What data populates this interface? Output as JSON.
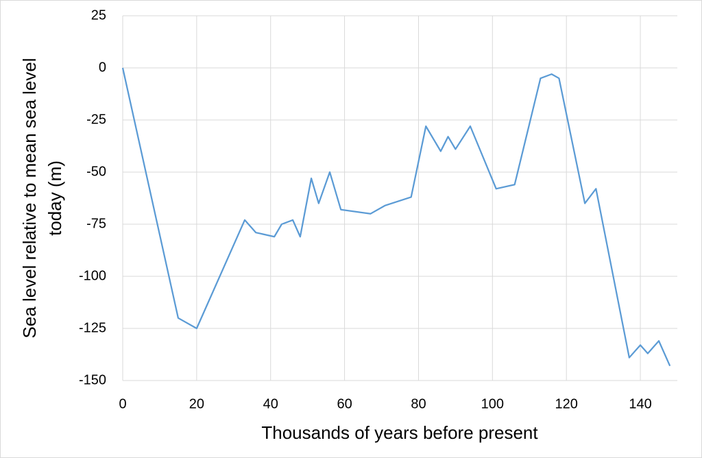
{
  "chart_data": {
    "type": "line",
    "x_label": "Thousands of years before present",
    "y_label": [
      "Sea level relative to mean sea level",
      "today (m)"
    ],
    "x": [
      0,
      15,
      20,
      33,
      36,
      41,
      43,
      46,
      48,
      51,
      53,
      56,
      59,
      67,
      71,
      78,
      82,
      86,
      88,
      90,
      94,
      101,
      106,
      113,
      116,
      118,
      125,
      128,
      137,
      140,
      142,
      145,
      148
    ],
    "series": [
      {
        "color": "#5b9bd5",
        "values": [
          0,
          -120,
          -125,
          -73,
          -79,
          -81,
          -75,
          -73,
          -81,
          -53,
          -65,
          -50,
          -68,
          -70,
          -66,
          -62,
          -28,
          -40,
          -33,
          -39,
          -28,
          -58,
          -56,
          -5,
          -3,
          -5,
          -65,
          -58,
          -139,
          -133,
          -137,
          -131,
          -143
        ]
      }
    ],
    "xlim": [
      0,
      150
    ],
    "xticks": [
      0,
      20,
      40,
      60,
      80,
      100,
      120,
      140
    ],
    "ylim": [
      -150,
      25
    ],
    "yticks": [
      -150,
      -125,
      -100,
      -75,
      -50,
      -25,
      0,
      25
    ],
    "grid": true
  }
}
